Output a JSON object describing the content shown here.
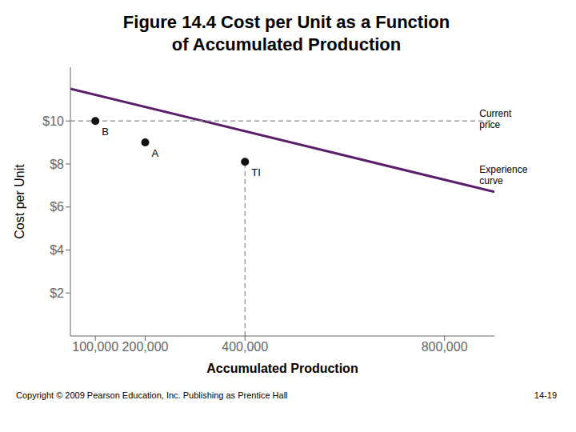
{
  "chart_data": {
    "type": "line",
    "title": "Figure 14.4 Cost per Unit as a Function\nof Accumulated Production",
    "x_label": "Accumulated Production",
    "y_label": "Cost per Unit",
    "xlim": [
      50000,
      900000
    ],
    "ylim": [
      0,
      12.5
    ],
    "xticks": [
      {
        "value": 100000,
        "label": "100,000"
      },
      {
        "value": 200000,
        "label": "200,000"
      },
      {
        "value": 400000,
        "label": "400,000"
      },
      {
        "value": 800000,
        "label": "800,000"
      }
    ],
    "yticks": [
      {
        "value": 2,
        "label": "$2"
      },
      {
        "value": 4,
        "label": "$4"
      },
      {
        "value": 6,
        "label": "$6"
      },
      {
        "value": 8,
        "label": "$8"
      },
      {
        "value": 10,
        "label": "$10"
      }
    ],
    "grid": false,
    "series": [
      {
        "type": "line",
        "color": "#5B1E6B",
        "x": [
          50000,
          900000
        ],
        "values": [
          11.5,
          6.7
        ]
      },
      {
        "type": "scatter",
        "color": "#111111",
        "marker": "circle",
        "x": [
          100000,
          200000,
          400000
        ],
        "values": [
          10.0,
          9.0,
          8.1
        ],
        "labels": [
          "B",
          "A",
          "TI"
        ]
      },
      {
        "type": "hline",
        "color": "#888888",
        "line_style": "dashed",
        "values": [
          10.0
        ]
      },
      {
        "type": "vline",
        "color": "#888888",
        "line_style": "dashed",
        "x": [
          400000
        ],
        "values": [
          8.1
        ]
      }
    ],
    "annotations": [
      {
        "text": "Current\nprice",
        "x": 870000,
        "y": 10.6
      },
      {
        "text": "Experience\ncurve",
        "x": 870000,
        "y": 8.0
      }
    ],
    "footnote": "Copyright © 2009 Pearson Education, Inc.  Publishing as Prentice Hall",
    "page_number": "14-19"
  }
}
